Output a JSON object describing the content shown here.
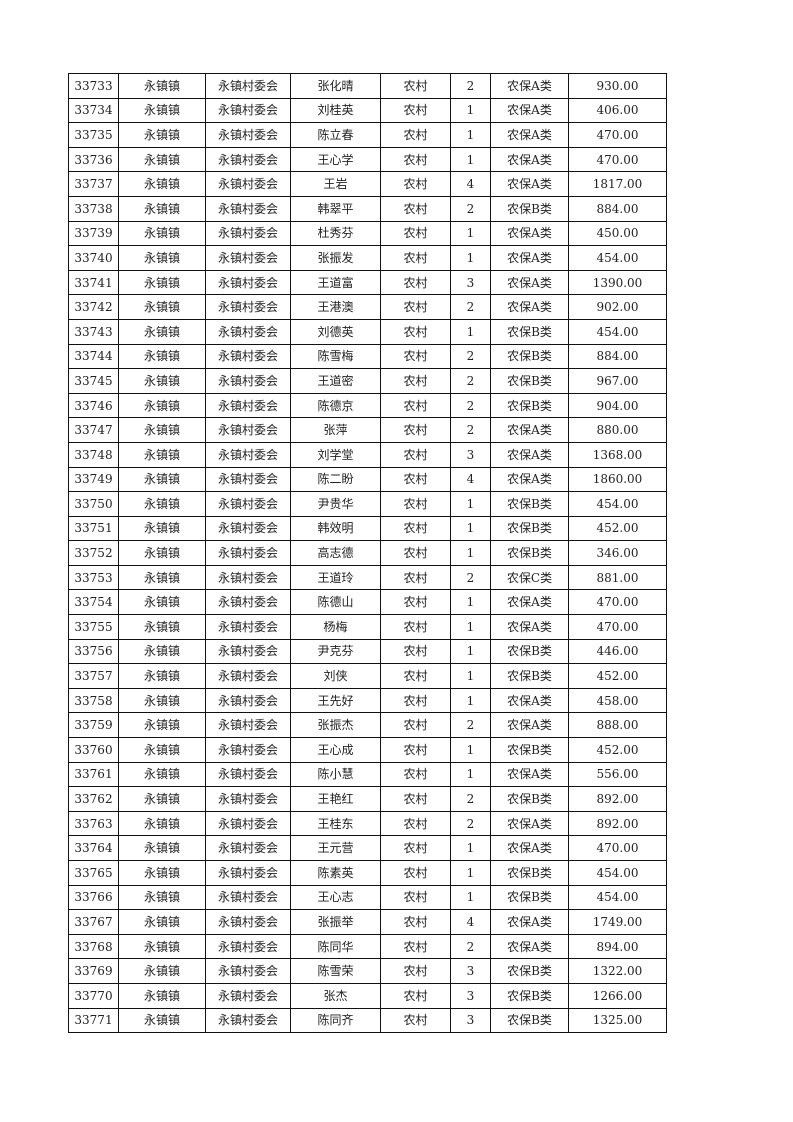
{
  "rows": [
    [
      "33733",
      "永镇镇",
      "永镇村委会",
      "张化晴",
      "农村",
      "2",
      "农保A类",
      "930.00"
    ],
    [
      "33734",
      "永镇镇",
      "永镇村委会",
      "刘桂英",
      "农村",
      "1",
      "农保A类",
      "406.00"
    ],
    [
      "33735",
      "永镇镇",
      "永镇村委会",
      "陈立春",
      "农村",
      "1",
      "农保A类",
      "470.00"
    ],
    [
      "33736",
      "永镇镇",
      "永镇村委会",
      "王心学",
      "农村",
      "1",
      "农保A类",
      "470.00"
    ],
    [
      "33737",
      "永镇镇",
      "永镇村委会",
      "王岩",
      "农村",
      "4",
      "农保A类",
      "1817.00"
    ],
    [
      "33738",
      "永镇镇",
      "永镇村委会",
      "韩翠平",
      "农村",
      "2",
      "农保B类",
      "884.00"
    ],
    [
      "33739",
      "永镇镇",
      "永镇村委会",
      "杜秀芬",
      "农村",
      "1",
      "农保A类",
      "450.00"
    ],
    [
      "33740",
      "永镇镇",
      "永镇村委会",
      "张振发",
      "农村",
      "1",
      "农保A类",
      "454.00"
    ],
    [
      "33741",
      "永镇镇",
      "永镇村委会",
      "王道富",
      "农村",
      "3",
      "农保A类",
      "1390.00"
    ],
    [
      "33742",
      "永镇镇",
      "永镇村委会",
      "王港澳",
      "农村",
      "2",
      "农保A类",
      "902.00"
    ],
    [
      "33743",
      "永镇镇",
      "永镇村委会",
      "刘德英",
      "农村",
      "1",
      "农保B类",
      "454.00"
    ],
    [
      "33744",
      "永镇镇",
      "永镇村委会",
      "陈雪梅",
      "农村",
      "2",
      "农保B类",
      "884.00"
    ],
    [
      "33745",
      "永镇镇",
      "永镇村委会",
      "王道密",
      "农村",
      "2",
      "农保B类",
      "967.00"
    ],
    [
      "33746",
      "永镇镇",
      "永镇村委会",
      "陈德京",
      "农村",
      "2",
      "农保B类",
      "904.00"
    ],
    [
      "33747",
      "永镇镇",
      "永镇村委会",
      "张萍",
      "农村",
      "2",
      "农保A类",
      "880.00"
    ],
    [
      "33748",
      "永镇镇",
      "永镇村委会",
      "刘学堂",
      "农村",
      "3",
      "农保A类",
      "1368.00"
    ],
    [
      "33749",
      "永镇镇",
      "永镇村委会",
      "陈二盼",
      "农村",
      "4",
      "农保A类",
      "1860.00"
    ],
    [
      "33750",
      "永镇镇",
      "永镇村委会",
      "尹贵华",
      "农村",
      "1",
      "农保B类",
      "454.00"
    ],
    [
      "33751",
      "永镇镇",
      "永镇村委会",
      "韩效明",
      "农村",
      "1",
      "农保B类",
      "452.00"
    ],
    [
      "33752",
      "永镇镇",
      "永镇村委会",
      "高志德",
      "农村",
      "1",
      "农保B类",
      "346.00"
    ],
    [
      "33753",
      "永镇镇",
      "永镇村委会",
      "王道玲",
      "农村",
      "2",
      "农保C类",
      "881.00"
    ],
    [
      "33754",
      "永镇镇",
      "永镇村委会",
      "陈德山",
      "农村",
      "1",
      "农保A类",
      "470.00"
    ],
    [
      "33755",
      "永镇镇",
      "永镇村委会",
      "杨梅",
      "农村",
      "1",
      "农保A类",
      "470.00"
    ],
    [
      "33756",
      "永镇镇",
      "永镇村委会",
      "尹克芬",
      "农村",
      "1",
      "农保B类",
      "446.00"
    ],
    [
      "33757",
      "永镇镇",
      "永镇村委会",
      "刘侠",
      "农村",
      "1",
      "农保B类",
      "452.00"
    ],
    [
      "33758",
      "永镇镇",
      "永镇村委会",
      "王先好",
      "农村",
      "1",
      "农保A类",
      "458.00"
    ],
    [
      "33759",
      "永镇镇",
      "永镇村委会",
      "张振杰",
      "农村",
      "2",
      "农保A类",
      "888.00"
    ],
    [
      "33760",
      "永镇镇",
      "永镇村委会",
      "王心成",
      "农村",
      "1",
      "农保B类",
      "452.00"
    ],
    [
      "33761",
      "永镇镇",
      "永镇村委会",
      "陈小慧",
      "农村",
      "1",
      "农保A类",
      "556.00"
    ],
    [
      "33762",
      "永镇镇",
      "永镇村委会",
      "王艳红",
      "农村",
      "2",
      "农保B类",
      "892.00"
    ],
    [
      "33763",
      "永镇镇",
      "永镇村委会",
      "王桂东",
      "农村",
      "2",
      "农保A类",
      "892.00"
    ],
    [
      "33764",
      "永镇镇",
      "永镇村委会",
      "王元营",
      "农村",
      "1",
      "农保A类",
      "470.00"
    ],
    [
      "33765",
      "永镇镇",
      "永镇村委会",
      "陈素英",
      "农村",
      "1",
      "农保B类",
      "454.00"
    ],
    [
      "33766",
      "永镇镇",
      "永镇村委会",
      "王心志",
      "农村",
      "1",
      "农保B类",
      "454.00"
    ],
    [
      "33767",
      "永镇镇",
      "永镇村委会",
      "张振举",
      "农村",
      "4",
      "农保A类",
      "1749.00"
    ],
    [
      "33768",
      "永镇镇",
      "永镇村委会",
      "陈同华",
      "农村",
      "2",
      "农保A类",
      "894.00"
    ],
    [
      "33769",
      "永镇镇",
      "永镇村委会",
      "陈雪荣",
      "农村",
      "3",
      "农保B类",
      "1322.00"
    ],
    [
      "33770",
      "永镇镇",
      "永镇村委会",
      "张杰",
      "农村",
      "3",
      "农保B类",
      "1266.00"
    ],
    [
      "33771",
      "永镇镇",
      "永镇村委会",
      "陈同齐",
      "农村",
      "3",
      "农保B类",
      "1325.00"
    ]
  ]
}
